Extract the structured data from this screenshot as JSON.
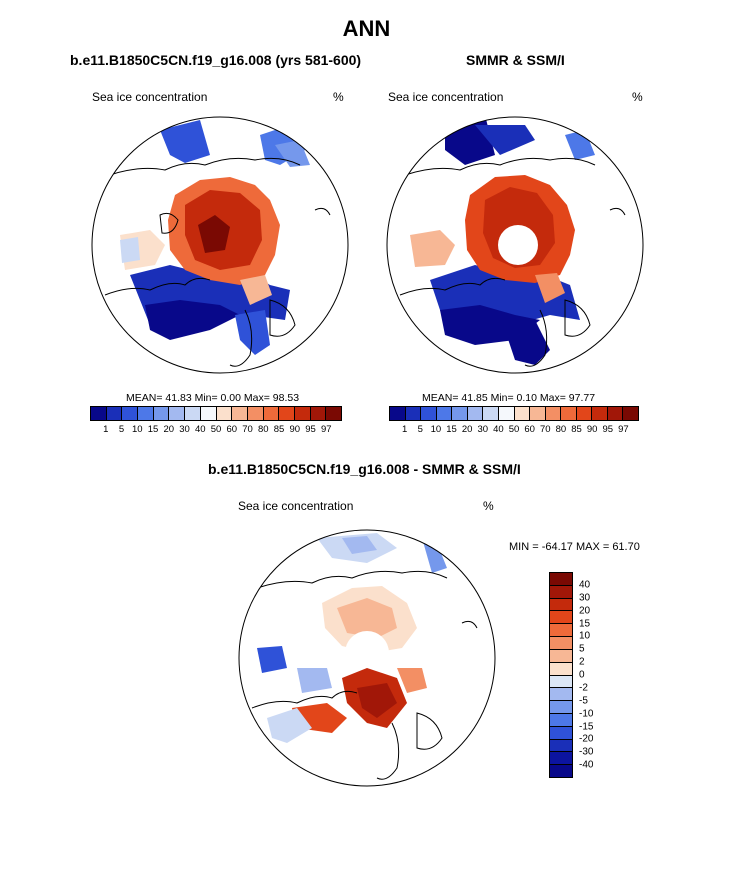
{
  "title": "ANN",
  "panel_left": {
    "title": "b.e11.B1850C5CN.f19_g16.008 (yrs 581-600)",
    "field": "Sea ice concentration",
    "units": "%",
    "stats": "MEAN=  41.83  Min=   0.00  Max=  98.53"
  },
  "panel_right": {
    "title": "SMMR & SSM/I",
    "field": "Sea ice concentration",
    "units": "%",
    "stats": "MEAN=  41.85  Min=   0.10  Max=  97.77"
  },
  "panel_diff": {
    "title": "b.e11.B1850C5CN.f19_g16.008 - SMMR & SSM/I",
    "field": "Sea ice concentration",
    "units": "%",
    "minmax": "MIN = -64.17 MAX =  61.70"
  },
  "colorbar_main": {
    "labels": [
      "1",
      "5",
      "10",
      "15",
      "20",
      "30",
      "40",
      "50",
      "60",
      "70",
      "80",
      "85",
      "90",
      "95",
      "97"
    ],
    "colors": [
      "#08088a",
      "#1a2fb8",
      "#2f52d8",
      "#4d78e8",
      "#7598ec",
      "#a3b9f0",
      "#cbd9f4",
      "#f5f8fc",
      "#fbe0cc",
      "#f7b795",
      "#f38f64",
      "#ee6a3a",
      "#e2461a",
      "#c42a0c",
      "#a11708",
      "#7a0903"
    ]
  },
  "colorbar_diff": {
    "labels": [
      "40",
      "30",
      "20",
      "15",
      "10",
      "5",
      "2",
      "0",
      "-2",
      "-5",
      "-10",
      "-15",
      "-20",
      "-30",
      "-40"
    ],
    "colors": [
      "#7a0903",
      "#a11708",
      "#c42a0c",
      "#e2461a",
      "#ee6a3a",
      "#f38f64",
      "#f7b795",
      "#fbe0cc",
      "#dbe6f6",
      "#a3b9f0",
      "#7598ec",
      "#4d78e8",
      "#2f52d8",
      "#1a2fb8",
      "#0c14a0",
      "#08088a"
    ]
  }
}
